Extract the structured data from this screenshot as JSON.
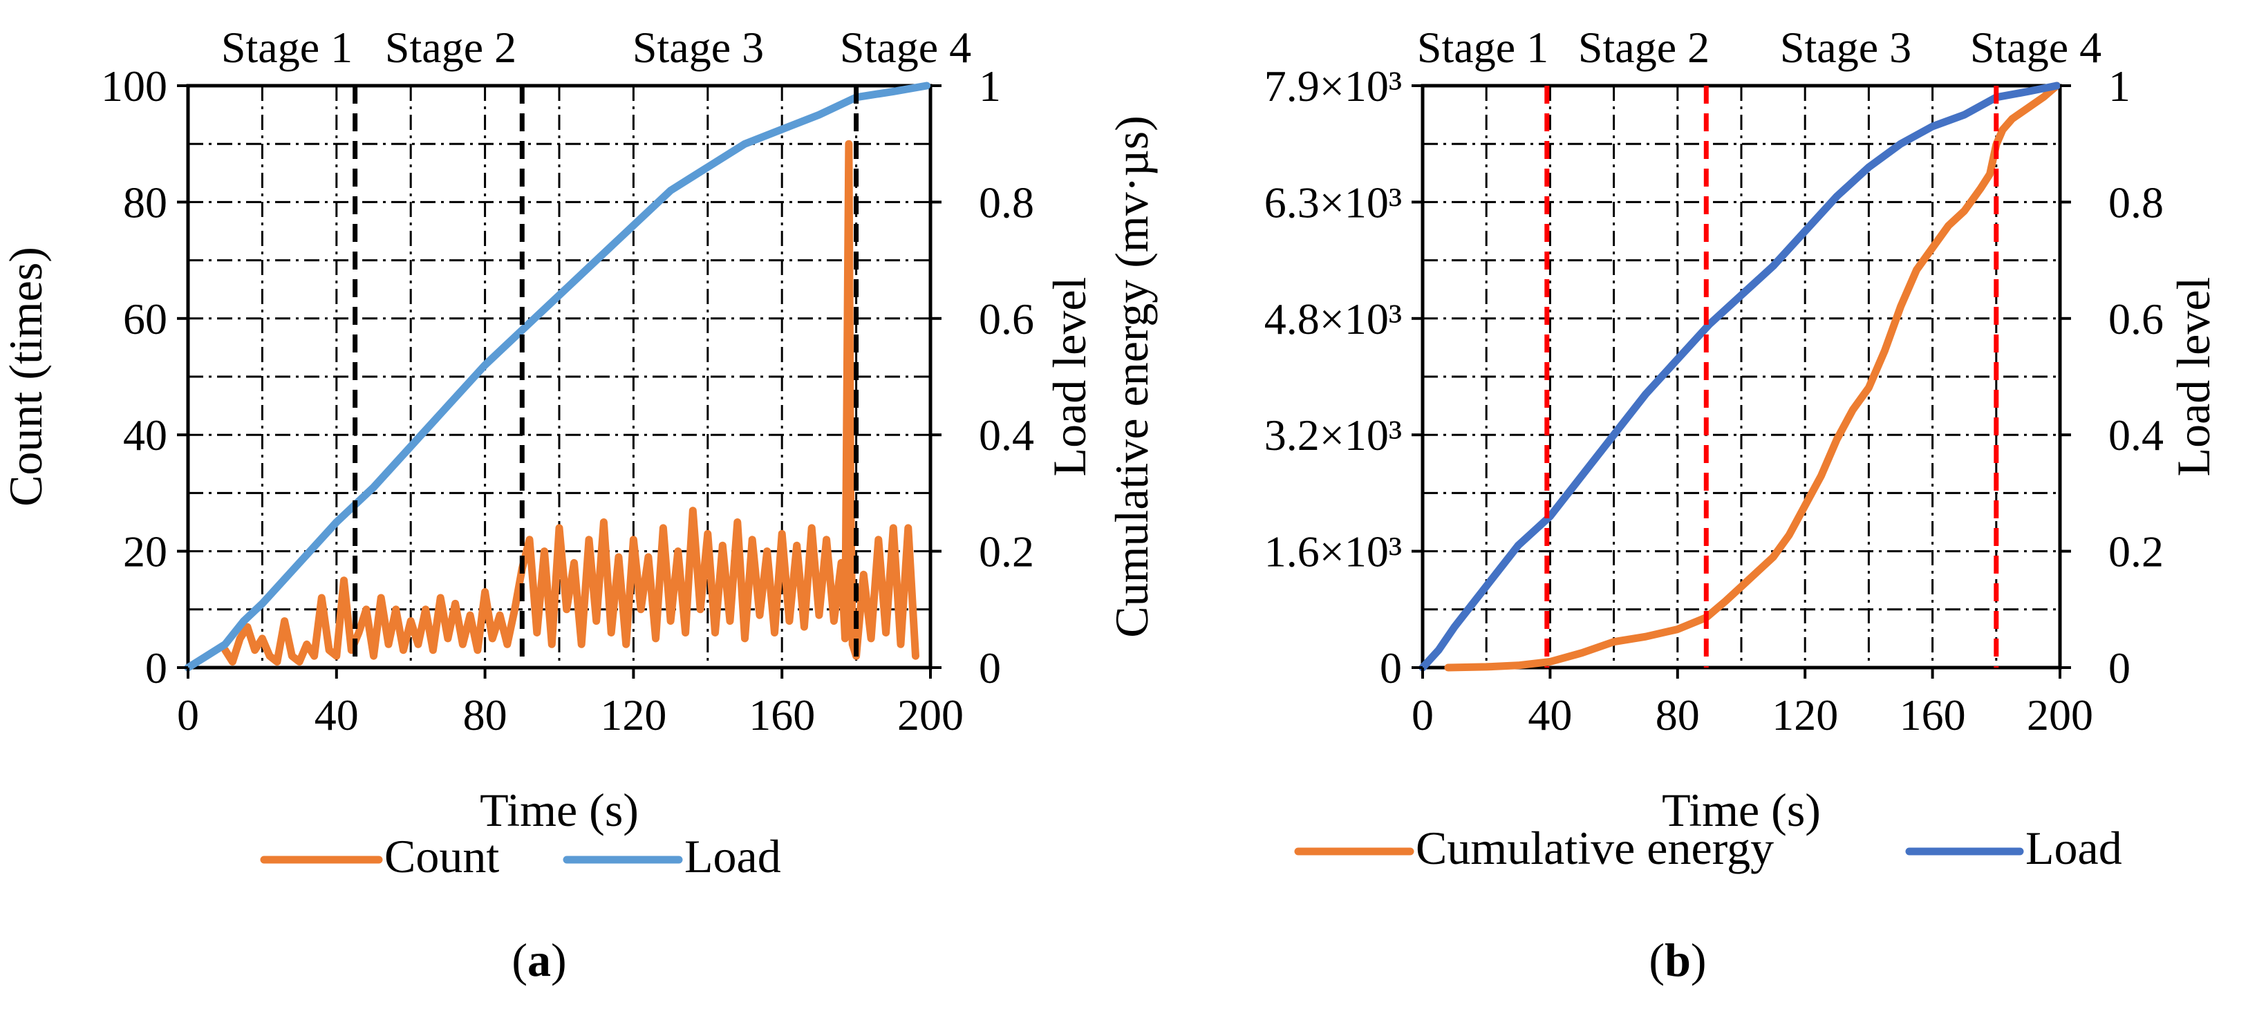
{
  "figure": {
    "panels": [
      "a",
      "b"
    ]
  },
  "chart_data": [
    {
      "id": "a",
      "type": "line",
      "panel_label": "a",
      "xlabel": "Time (s)",
      "ylabel": "Count (times)",
      "y2label": "Load level",
      "xlim": [
        0,
        200
      ],
      "ylim": [
        0,
        100
      ],
      "y2lim": [
        0,
        1
      ],
      "x_ticks": [
        "0",
        "40",
        "80",
        "120",
        "160",
        "200"
      ],
      "x_tick_values": [
        0,
        40,
        80,
        120,
        160,
        200
      ],
      "y_ticks": [
        "0",
        "20",
        "40",
        "60",
        "80",
        "100"
      ],
      "y_tick_values": [
        0,
        20,
        40,
        60,
        80,
        100
      ],
      "y2_ticks": [
        "0",
        "0.2",
        "0.4",
        "0.6",
        "0.8",
        "1"
      ],
      "y2_tick_values": [
        0,
        0.2,
        0.4,
        0.6,
        0.8,
        1
      ],
      "grid": true,
      "stage_labels": [
        "Stage 1",
        "Stage 2",
        "Stage 3",
        "Stage 4"
      ],
      "stage_boundaries": [
        45,
        90,
        180
      ],
      "stage_line_color": "#000000",
      "legend": {
        "placement": "bottom"
      },
      "series": [
        {
          "name": "Count",
          "axis": "left",
          "color": "#ED7D31",
          "x": [
            10,
            12,
            14,
            16,
            18,
            20,
            22,
            24,
            26,
            28,
            30,
            32,
            34,
            36,
            38,
            40,
            42,
            44,
            46,
            48,
            50,
            52,
            54,
            56,
            58,
            60,
            62,
            64,
            66,
            68,
            70,
            72,
            74,
            76,
            78,
            80,
            82,
            84,
            86,
            88,
            90,
            92,
            94,
            96,
            98,
            100,
            102,
            104,
            106,
            108,
            110,
            112,
            114,
            116,
            118,
            120,
            122,
            124,
            126,
            128,
            130,
            132,
            134,
            136,
            138,
            140,
            142,
            144,
            146,
            148,
            150,
            152,
            154,
            156,
            158,
            160,
            162,
            164,
            166,
            168,
            170,
            172,
            174,
            176,
            177,
            178,
            178.5,
            179,
            180,
            182,
            184,
            186,
            188,
            190,
            192,
            194,
            196
          ],
          "values": [
            3,
            1,
            5,
            7,
            3,
            5,
            2,
            1,
            8,
            2,
            1,
            4,
            2,
            12,
            3,
            2,
            15,
            3,
            6,
            10,
            2,
            12,
            4,
            10,
            3,
            8,
            4,
            10,
            3,
            12,
            5,
            11,
            4,
            9,
            3,
            13,
            5,
            9,
            4,
            10,
            17,
            22,
            6,
            20,
            4,
            24,
            10,
            18,
            4,
            22,
            8,
            25,
            6,
            19,
            4,
            22,
            10,
            19,
            5,
            24,
            8,
            20,
            6,
            27,
            10,
            23,
            6,
            21,
            8,
            25,
            5,
            22,
            9,
            20,
            6,
            23,
            8,
            21,
            7,
            24,
            9,
            22,
            8,
            18,
            5,
            90,
            30,
            4,
            2,
            16,
            5,
            22,
            6,
            24,
            4,
            24,
            2
          ]
        },
        {
          "name": "Load",
          "axis": "right",
          "color": "#5B9BD5",
          "x": [
            0,
            5,
            10,
            15,
            20,
            30,
            40,
            50,
            60,
            70,
            80,
            90,
            100,
            110,
            120,
            130,
            135,
            140,
            150,
            160,
            170,
            180,
            190,
            199
          ],
          "values": [
            0,
            0.02,
            0.04,
            0.08,
            0.11,
            0.18,
            0.25,
            0.31,
            0.38,
            0.45,
            0.52,
            0.58,
            0.64,
            0.7,
            0.76,
            0.82,
            0.84,
            0.86,
            0.9,
            0.925,
            0.95,
            0.98,
            0.99,
            1.0
          ]
        }
      ]
    },
    {
      "id": "b",
      "type": "line",
      "panel_label": "b",
      "xlabel": "Time (s)",
      "ylabel": "Cumulative energy (mv·µs)",
      "y2label": "Load level",
      "xlim": [
        0,
        200
      ],
      "ylim": [
        0,
        7900
      ],
      "y2lim": [
        0,
        1
      ],
      "x_ticks": [
        "0",
        "40",
        "80",
        "120",
        "160",
        "200"
      ],
      "x_tick_values": [
        0,
        40,
        80,
        120,
        160,
        200
      ],
      "y_ticks": [
        "0",
        "1.6×10³",
        "3.2×10³",
        "4.8×10³",
        "6.3×10³",
        "7.9×10³"
      ],
      "y_tick_values": [
        0,
        1580,
        3160,
        4740,
        6320,
        7900
      ],
      "y2_ticks": [
        "0",
        "0.2",
        "0.4",
        "0.6",
        "0.8",
        "1"
      ],
      "y2_tick_values": [
        0,
        0.2,
        0.4,
        0.6,
        0.8,
        1
      ],
      "grid": true,
      "stage_labels": [
        "Stage 1",
        "Stage 2",
        "Stage 3",
        "Stage 4"
      ],
      "stage_boundaries": [
        39,
        89,
        180
      ],
      "stage_line_color": "#FF0000",
      "legend": {
        "placement": "bottom"
      },
      "series": [
        {
          "name": "Cumulative energy",
          "axis": "left",
          "color": "#ED7D31",
          "x": [
            8,
            20,
            30,
            40,
            50,
            60,
            70,
            80,
            89,
            95,
            100,
            105,
            110,
            115,
            120,
            125,
            130,
            135,
            140,
            145,
            150,
            155,
            160,
            165,
            170,
            175,
            178,
            180,
            182,
            185,
            190,
            195,
            199
          ],
          "values": [
            0,
            10,
            30,
            80,
            200,
            350,
            420,
            520,
            680,
            900,
            1100,
            1300,
            1500,
            1800,
            2200,
            2600,
            3100,
            3500,
            3800,
            4300,
            4900,
            5400,
            5700,
            6000,
            6200,
            6500,
            6700,
            7100,
            7300,
            7450,
            7600,
            7750,
            7900
          ]
        },
        {
          "name": "Load",
          "axis": "right",
          "color": "#4472C4",
          "x": [
            0,
            5,
            10,
            20,
            30,
            40,
            50,
            60,
            70,
            80,
            90,
            100,
            110,
            120,
            130,
            140,
            150,
            160,
            170,
            180,
            190,
            199
          ],
          "values": [
            0,
            0.03,
            0.07,
            0.14,
            0.21,
            0.26,
            0.33,
            0.4,
            0.47,
            0.53,
            0.59,
            0.64,
            0.69,
            0.75,
            0.81,
            0.86,
            0.9,
            0.93,
            0.95,
            0.98,
            0.99,
            1.0
          ]
        }
      ]
    }
  ]
}
